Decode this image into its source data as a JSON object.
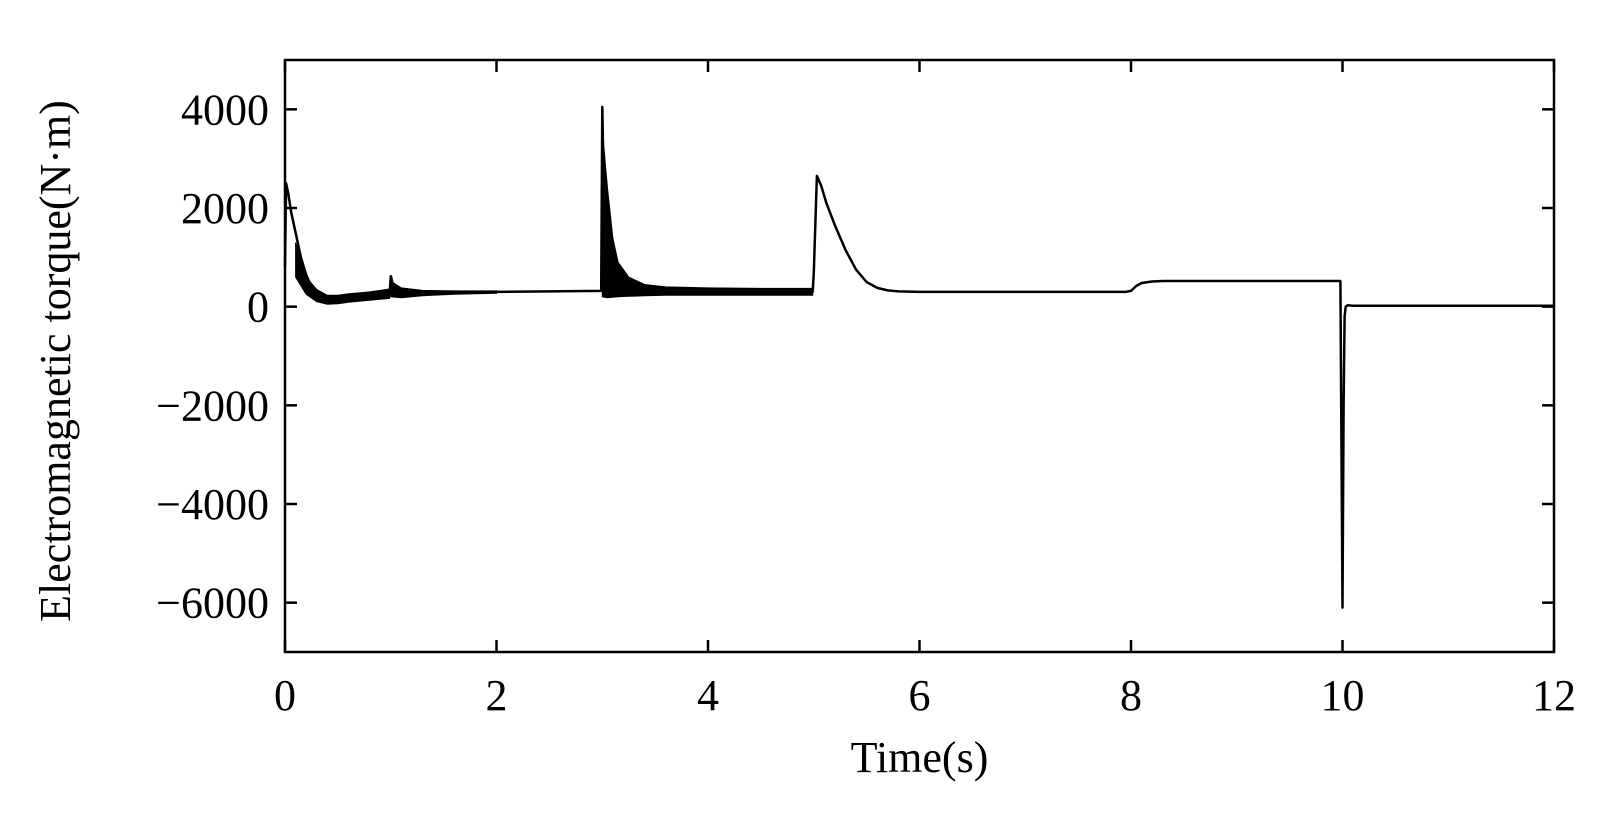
{
  "chart_data": {
    "type": "line",
    "title": "",
    "xlabel": "Time(s)",
    "ylabel": "Electromagnetic  torque(N·m)",
    "xlim": [
      0,
      12
    ],
    "ylim": [
      -7000,
      5000
    ],
    "grid": false,
    "legend": "none",
    "line_color": "#000000",
    "x_ticks": [
      0,
      2,
      4,
      6,
      8,
      10,
      12
    ],
    "x_tick_labels": [
      "0",
      "2",
      "4",
      "6",
      "8",
      "10",
      "12"
    ],
    "y_ticks": [
      4000,
      2000,
      0,
      -2000,
      -4000,
      -6000
    ],
    "y_tick_labels": [
      "4000",
      "2000",
      "0",
      "−2000",
      "−4000",
      "−6000"
    ],
    "series": [
      {
        "x": [
          0,
          0.01,
          0.03,
          0.06,
          0.1,
          0.15,
          0.2,
          0.25,
          0.3,
          0.35,
          0.4,
          0.5,
          0.6,
          0.7,
          0.8,
          0.9,
          0.99,
          1.0,
          1.02,
          1.05,
          1.1,
          1.2,
          1.4,
          1.6,
          1.8,
          2.0,
          2.5,
          2.99,
          3.0,
          3.02,
          3.05,
          3.08,
          3.12,
          3.18,
          3.25,
          3.35,
          3.5,
          3.7,
          4.0,
          4.5,
          4.99,
          5.0,
          5.03,
          5.07,
          5.12,
          5.2,
          5.3,
          5.4,
          5.5,
          5.6,
          5.7,
          5.8,
          6.0,
          6.5,
          7.0,
          7.5,
          7.95,
          8.0,
          8.05,
          8.1,
          8.2,
          8.3,
          8.5,
          9.0,
          9.5,
          9.98,
          10.0,
          10.01,
          10.02,
          10.03,
          10.05,
          10.1,
          10.5,
          11.0,
          12.0
        ],
        "y": [
          800,
          2500,
          2300,
          1900,
          1500,
          1000,
          650,
          400,
          250,
          180,
          150,
          150,
          170,
          190,
          210,
          240,
          260,
          620,
          450,
          320,
          280,
          270,
          280,
          290,
          300,
          300,
          310,
          320,
          4050,
          1700,
          1000,
          700,
          550,
          450,
          380,
          340,
          320,
          310,
          300,
          300,
          300,
          700,
          2650,
          2450,
          2100,
          1650,
          1150,
          750,
          500,
          380,
          330,
          310,
          300,
          300,
          300,
          300,
          300,
          320,
          420,
          480,
          510,
          520,
          520,
          520,
          520,
          520,
          -6100,
          -2000,
          -200,
          0,
          30,
          20,
          20,
          20,
          20
        ],
        "oscillation_band": [
          {
            "x": [
              0.1,
              0.2,
              0.3,
              0.4,
              0.5,
              0.6,
              0.7,
              0.8,
              0.9,
              0.99
            ],
            "upper": [
              1300,
              600,
              350,
              230,
              230,
              260,
              280,
              300,
              330,
              360
            ],
            "lower": [
              600,
              250,
              100,
              50,
              60,
              90,
              110,
              130,
              150,
              170
            ]
          },
          {
            "x": [
              1.0,
              1.1,
              1.3,
              1.6,
              2.0
            ],
            "upper": [
              520,
              380,
              330,
              320,
              320
            ],
            "lower": [
              200,
              180,
              220,
              250,
              270
            ]
          },
          {
            "x": [
              3.0,
              3.05,
              3.1,
              3.15,
              3.25,
              3.4,
              3.6,
              4.0,
              4.5,
              4.99
            ],
            "upper": [
              3600,
              2400,
              1400,
              900,
              600,
              450,
              400,
              380,
              370,
              370
            ],
            "lower": [
              200,
              180,
              190,
              200,
              210,
              220,
              230,
              230,
              230,
              230
            ]
          }
        ]
      }
    ]
  }
}
